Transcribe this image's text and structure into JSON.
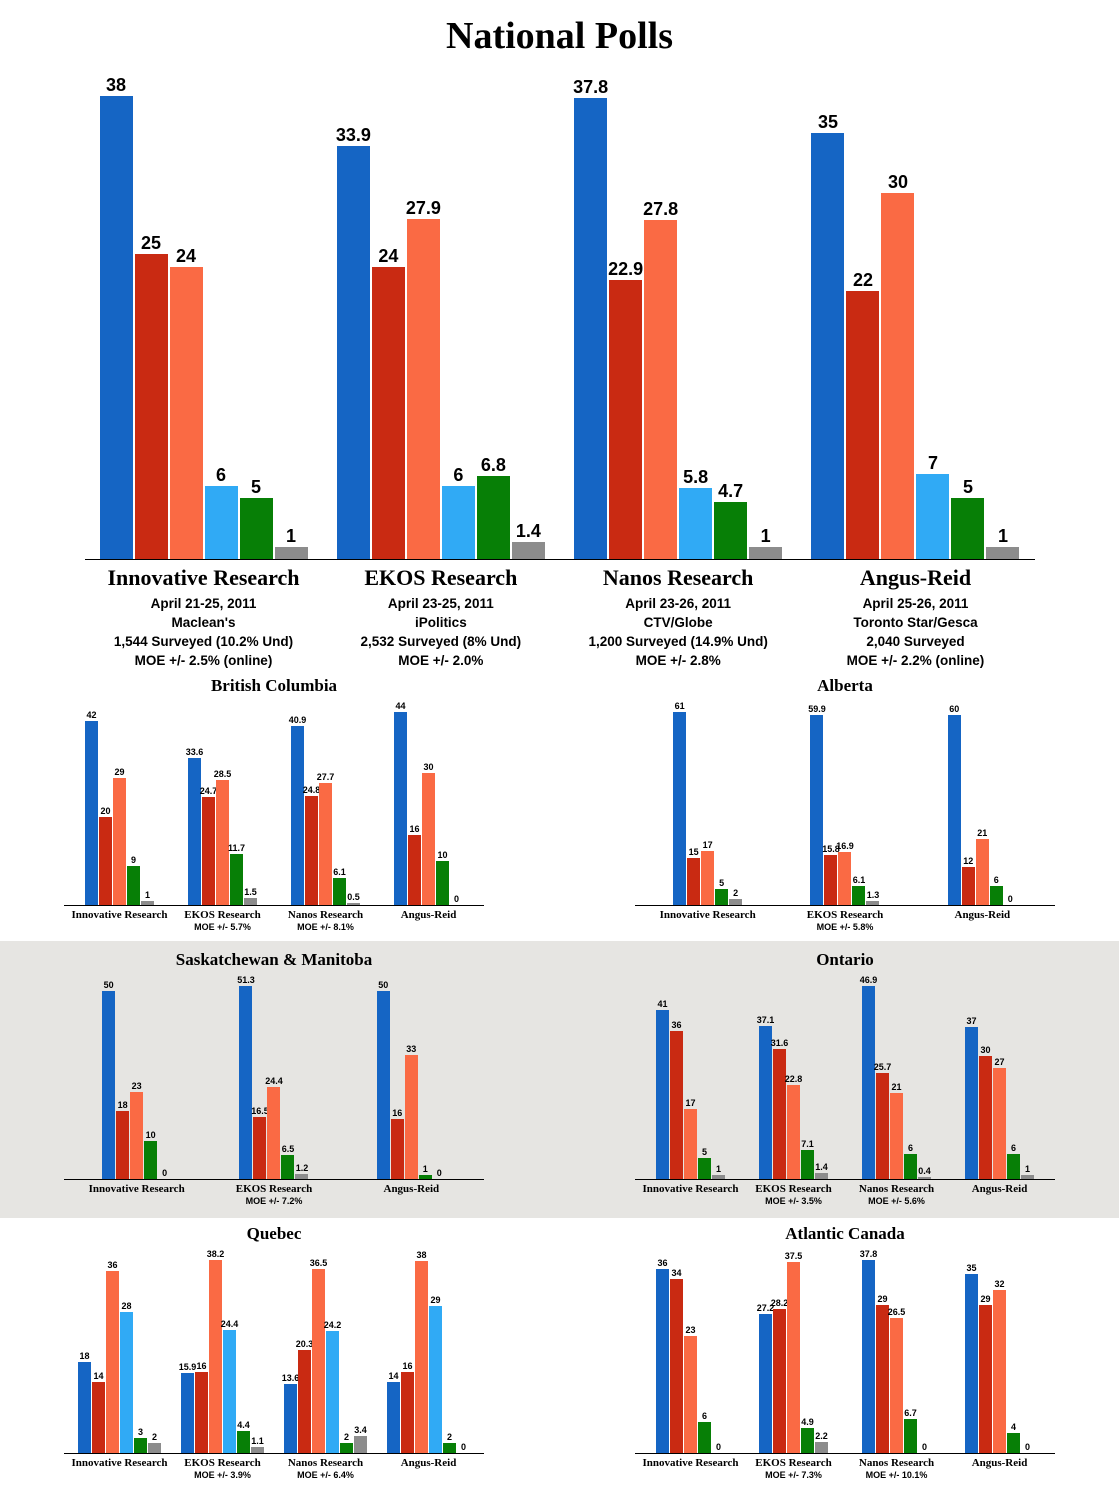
{
  "title": "National Polls",
  "party_colors": {
    "con": "#1565c4",
    "lib": "#c92a12",
    "ndp": "#fa6a44",
    "bloc": "#30aaf5",
    "grn": "#077f06",
    "oth": "#8c8c8c"
  },
  "chart_data": [
    {
      "id": "national",
      "type": "bar",
      "title": "National Polls",
      "parties": [
        "con",
        "lib",
        "ndp",
        "bloc",
        "grn",
        "oth"
      ],
      "ylim": [
        0,
        38
      ],
      "groups": [
        {
          "label": "Innovative Research",
          "sublines": [
            "April 21-25, 2011",
            "Maclean's",
            "1,544 Surveyed (10.2% Und)",
            "MOE +/- 2.5% (online)"
          ],
          "values": [
            38,
            25,
            24,
            6,
            5,
            1
          ]
        },
        {
          "label": "EKOS Research",
          "sublines": [
            "April 23-25, 2011",
            "iPolitics",
            "2,532 Surveyed (8% Und)",
            "MOE +/- 2.0%"
          ],
          "values": [
            33.9,
            24,
            27.9,
            6,
            6.8,
            1.4
          ]
        },
        {
          "label": "Nanos Research",
          "sublines": [
            "April 23-26, 2011",
            "CTV/Globe",
            "1,200 Surveyed (14.9% Und)",
            "MOE +/- 2.8%"
          ],
          "values": [
            37.8,
            22.9,
            27.8,
            5.8,
            4.7,
            1
          ]
        },
        {
          "label": "Angus-Reid",
          "sublines": [
            "April 25-26, 2011",
            "Toronto Star/Gesca",
            "2,040 Surveyed",
            "MOE +/- 2.2% (online)"
          ],
          "values": [
            35,
            22,
            30,
            7,
            5,
            1
          ]
        }
      ]
    },
    {
      "id": "bc",
      "type": "bar",
      "title": "British Columbia",
      "show_title": true,
      "parties": [
        "con",
        "lib",
        "ndp",
        "grn",
        "oth"
      ],
      "ylim": [
        0,
        44
      ],
      "groups": [
        {
          "label": "Innovative Research",
          "values": [
            42,
            20,
            29,
            9,
            1
          ]
        },
        {
          "label": "EKOS Research",
          "moe": "MOE +/- 5.7%",
          "values": [
            33.6,
            24.7,
            28.5,
            11.7,
            1.5
          ]
        },
        {
          "label": "Nanos Research",
          "moe": "MOE +/- 8.1%",
          "values": [
            40.9,
            24.8,
            27.7,
            6.1,
            0.5
          ]
        },
        {
          "label": "Angus-Reid",
          "values": [
            44,
            16,
            30,
            10,
            0
          ]
        }
      ]
    },
    {
      "id": "ab",
      "type": "bar",
      "title": "Alberta",
      "show_title": true,
      "parties": [
        "con",
        "lib",
        "ndp",
        "grn",
        "oth"
      ],
      "ylim": [
        0,
        61
      ],
      "groups": [
        {
          "label": "Innovative Research",
          "values": [
            61,
            15,
            17,
            5,
            2
          ]
        },
        {
          "label": "EKOS Research",
          "moe": "MOE +/- 5.8%",
          "values": [
            59.9,
            15.8,
            16.9,
            6.1,
            1.3
          ]
        },
        {
          "label": "Angus-Reid",
          "values": [
            60,
            12,
            21,
            6,
            0
          ]
        }
      ]
    },
    {
      "id": "skmb",
      "type": "bar",
      "title": "Saskatchewan & Manitoba",
      "show_title": true,
      "parties": [
        "con",
        "lib",
        "ndp",
        "grn",
        "oth"
      ],
      "ylim": [
        0,
        51.3
      ],
      "groups": [
        {
          "label": "Innovative Research",
          "values": [
            50,
            18,
            23,
            10,
            0
          ]
        },
        {
          "label": "EKOS Research",
          "moe": "MOE +/- 7.2%",
          "values": [
            51.3,
            16.5,
            24.4,
            6.5,
            1.2
          ]
        },
        {
          "label": "Angus-Reid",
          "values": [
            50,
            16,
            33,
            1,
            0
          ]
        }
      ]
    },
    {
      "id": "on",
      "type": "bar",
      "title": "Ontario",
      "show_title": true,
      "parties": [
        "con",
        "lib",
        "ndp",
        "grn",
        "oth"
      ],
      "ylim": [
        0,
        46.9
      ],
      "groups": [
        {
          "label": "Innovative Research",
          "values": [
            41,
            36,
            17,
            5,
            1
          ]
        },
        {
          "label": "EKOS Research",
          "moe": "MOE +/- 3.5%",
          "values": [
            37.1,
            31.6,
            22.8,
            7.1,
            1.4
          ]
        },
        {
          "label": "Nanos Research",
          "moe": "MOE +/- 5.6%",
          "values": [
            46.9,
            25.7,
            21,
            6,
            0.4
          ]
        },
        {
          "label": "Angus-Reid",
          "values": [
            37,
            30,
            27,
            6,
            1
          ]
        }
      ]
    },
    {
      "id": "qc",
      "type": "bar",
      "title": "Quebec",
      "show_title": true,
      "parties": [
        "con",
        "lib",
        "ndp",
        "bloc",
        "grn",
        "oth"
      ],
      "ylim": [
        0,
        38.2
      ],
      "groups": [
        {
          "label": "Innovative Research",
          "values": [
            18,
            14,
            36,
            28,
            3,
            2
          ]
        },
        {
          "label": "EKOS Research",
          "moe": "MOE +/- 3.9%",
          "values": [
            15.9,
            16,
            38.2,
            24.4,
            4.4,
            1.1
          ]
        },
        {
          "label": "Nanos Research",
          "moe": "MOE +/- 6.4%",
          "values": [
            13.6,
            20.3,
            36.5,
            24.2,
            2,
            3.4
          ]
        },
        {
          "label": "Angus-Reid",
          "values": [
            14,
            16,
            38,
            29,
            2,
            0
          ]
        }
      ]
    },
    {
      "id": "atl",
      "type": "bar",
      "title": "Atlantic Canada",
      "show_title": true,
      "parties": [
        "con",
        "lib",
        "ndp",
        "grn",
        "oth"
      ],
      "ylim": [
        0,
        37.8
      ],
      "groups": [
        {
          "label": "Innovative Research",
          "values": [
            36,
            34,
            23,
            6,
            0
          ]
        },
        {
          "label": "EKOS Research",
          "moe": "MOE +/- 7.3%",
          "values": [
            27.2,
            28.2,
            37.5,
            4.9,
            2.2
          ]
        },
        {
          "label": "Nanos Research",
          "moe": "MOE +/- 10.1%",
          "values": [
            37.8,
            29,
            26.5,
            6.7,
            0
          ]
        },
        {
          "label": "Angus-Reid",
          "values": [
            35,
            29,
            32,
            4,
            0
          ]
        }
      ]
    }
  ]
}
